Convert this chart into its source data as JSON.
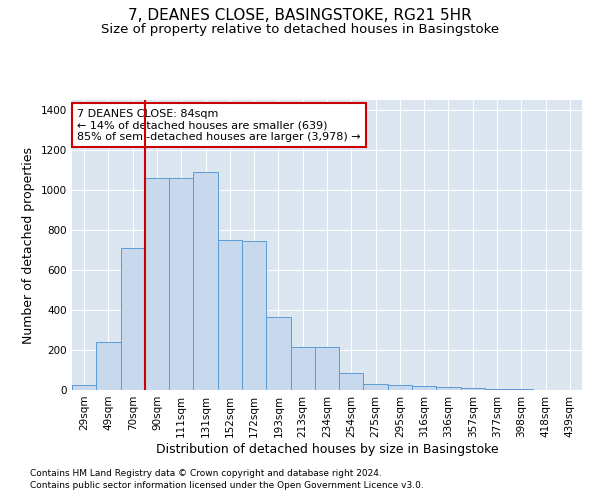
{
  "title": "7, DEANES CLOSE, BASINGSTOKE, RG21 5HR",
  "subtitle": "Size of property relative to detached houses in Basingstoke",
  "xlabel": "Distribution of detached houses by size in Basingstoke",
  "ylabel": "Number of detached properties",
  "footnote1": "Contains HM Land Registry data © Crown copyright and database right 2024.",
  "footnote2": "Contains public sector information licensed under the Open Government Licence v3.0.",
  "categories": [
    "29sqm",
    "49sqm",
    "70sqm",
    "90sqm",
    "111sqm",
    "131sqm",
    "152sqm",
    "172sqm",
    "193sqm",
    "213sqm",
    "234sqm",
    "254sqm",
    "275sqm",
    "295sqm",
    "316sqm",
    "336sqm",
    "357sqm",
    "377sqm",
    "398sqm",
    "418sqm",
    "439sqm"
  ],
  "values": [
    25,
    240,
    710,
    1060,
    1060,
    1090,
    750,
    745,
    365,
    215,
    215,
    85,
    30,
    25,
    20,
    15,
    10,
    5,
    5,
    0,
    0
  ],
  "bar_color": "#c8d9ed",
  "bar_edge_color": "#5b9bd5",
  "vline_x": 2.5,
  "vline_color": "#cc0000",
  "annotation_text": "7 DEANES CLOSE: 84sqm\n← 14% of detached houses are smaller (639)\n85% of semi-detached houses are larger (3,978) →",
  "annotation_box_color": "#ffffff",
  "annotation_box_edge": "#cc0000",
  "ylim": [
    0,
    1450
  ],
  "background_color": "#ffffff",
  "grid_color": "#dce6f1",
  "title_fontsize": 11,
  "subtitle_fontsize": 9.5,
  "axis_label_fontsize": 9,
  "tick_fontsize": 7.5,
  "annotation_fontsize": 8,
  "footnote_fontsize": 6.5
}
